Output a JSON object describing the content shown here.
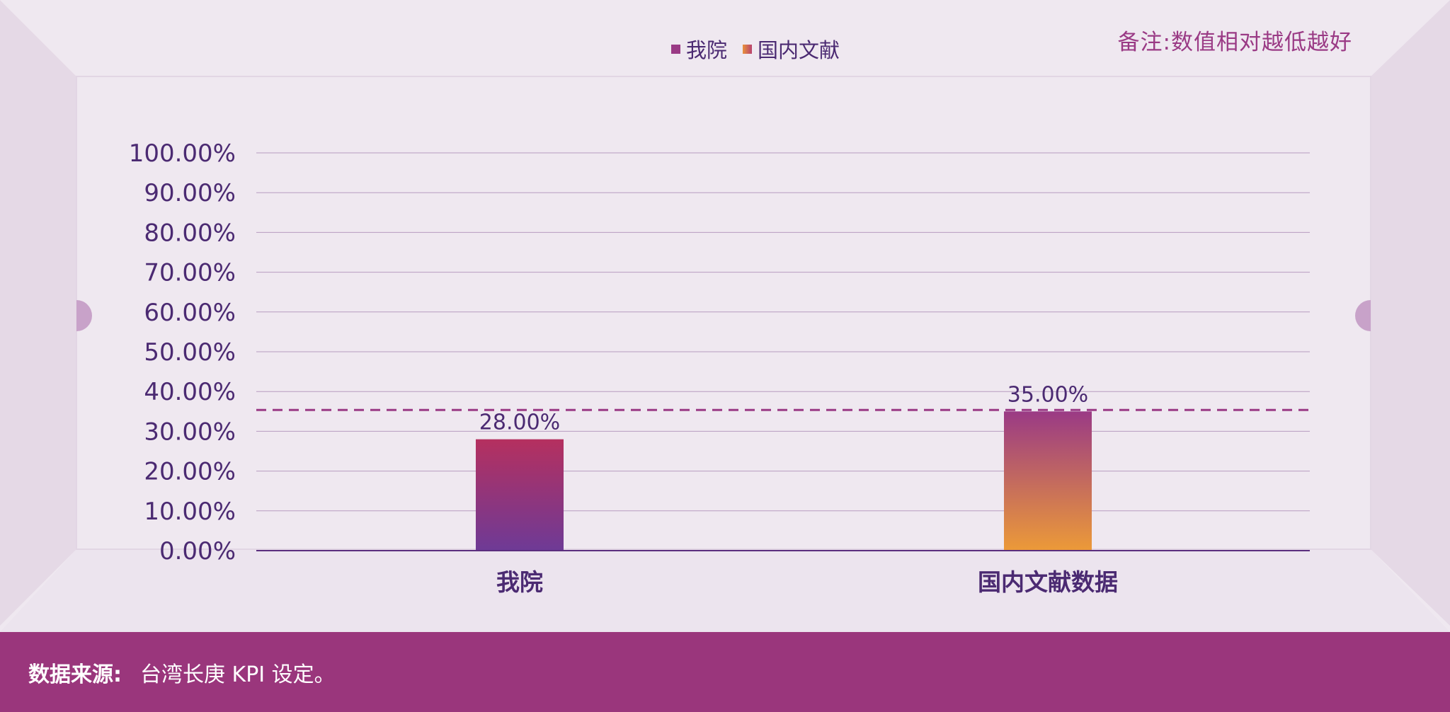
{
  "legend": {
    "items": [
      {
        "label": "我院",
        "color": "#9a3a85"
      },
      {
        "label": "国内文献",
        "color": "#e9913b"
      }
    ]
  },
  "note": "备注:数值相对越低越好",
  "footer": {
    "label": "数据来源:",
    "text": "台湾长庚 KPI 设定。"
  },
  "chart_data": {
    "type": "bar",
    "categories": [
      "我院",
      "国内文献数据"
    ],
    "values": [
      28.0,
      35.0
    ],
    "value_labels": [
      "28.00%",
      "35.00%"
    ],
    "ylim": [
      0,
      100
    ],
    "yticks": [
      "0.00%",
      "10.00%",
      "20.00%",
      "30.00%",
      "40.00%",
      "50.00%",
      "60.00%",
      "70.00%",
      "80.00%",
      "90.00%",
      "100.00%"
    ],
    "reference_line": 35.0,
    "grid": true,
    "legend_position": "top-center",
    "colors": {
      "bar1_top": "#b5305f",
      "bar1_bottom": "#6e3a96",
      "bar2_top": "#9a3a85",
      "bar2_bottom": "#ec9a38",
      "axis_text": "#4b2a72",
      "reference": "#9a3a85"
    }
  }
}
